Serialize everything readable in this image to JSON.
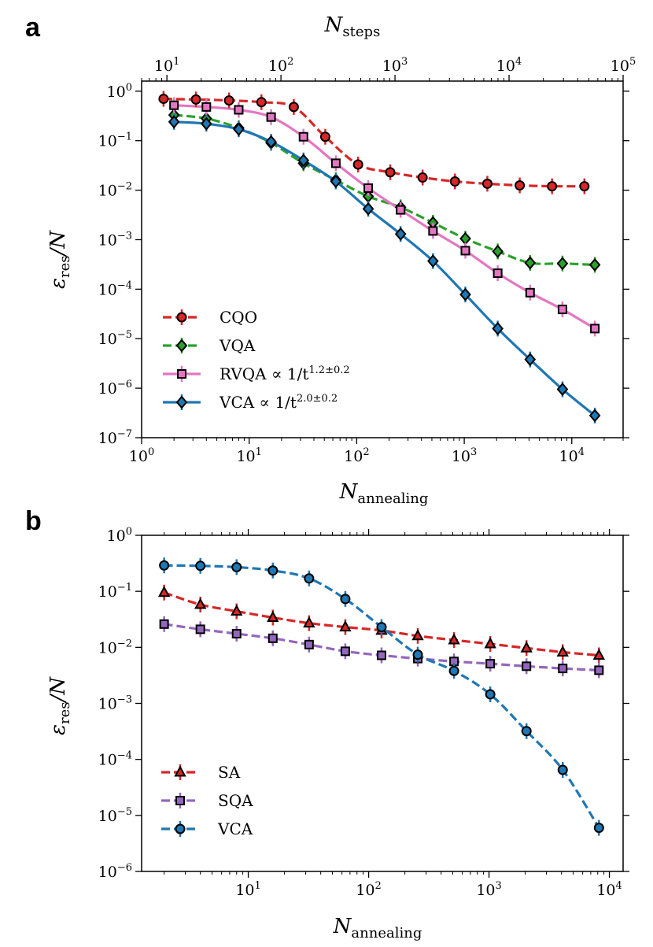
{
  "chart_data": [
    {
      "panel": "a",
      "type": "line",
      "xscale": "log",
      "yscale": "log",
      "xlim": [
        1,
        30000
      ],
      "ylim": [
        1e-07,
        1.6
      ],
      "xlabel": "N_annealing",
      "ylabel": "ε_res/N",
      "top_axis": {
        "label": "N_steps",
        "xlim": [
          6,
          100000
        ],
        "ticks": [
          10,
          100,
          1000,
          10000,
          100000
        ]
      },
      "xticks": [
        1,
        10,
        100,
        1000,
        10000
      ],
      "yticks": [
        1e-07,
        1e-06,
        1e-05,
        0.0001,
        0.001,
        0.01,
        0.1,
        1
      ],
      "legend_position": "lower-left",
      "series": [
        {
          "name": "CQO",
          "label": "CQO",
          "color": "#d62728",
          "marker": "circle",
          "linestyle": "dashed",
          "x": [
            1.6,
            3.2,
            6.5,
            13,
            26,
            51,
            103,
            205,
            410,
            820,
            1640,
            3280,
            6550,
            13100
          ],
          "y": [
            0.7,
            0.68,
            0.65,
            0.6,
            0.48,
            0.12,
            0.033,
            0.023,
            0.018,
            0.015,
            0.0135,
            0.0125,
            0.012,
            0.012
          ]
        },
        {
          "name": "VQA",
          "label": "VQA",
          "color": "#2ca02c",
          "marker": "diamond",
          "linestyle": "dashed",
          "x": [
            2,
            4,
            8,
            16,
            32,
            64,
            128,
            256,
            512,
            1024,
            2048,
            4096,
            8192,
            16384
          ],
          "y": [
            0.33,
            0.28,
            0.18,
            0.09,
            0.035,
            0.016,
            0.0075,
            0.0045,
            0.0022,
            0.00105,
            0.00058,
            0.00034,
            0.00033,
            0.00031
          ]
        },
        {
          "name": "RVQA",
          "label": "RVQA ∝ 1/t^1.2±0.2",
          "label_base": "RVQA ∝ 1/t",
          "label_exp": "1.2±0.2",
          "color": "#e377c2",
          "marker": "square",
          "linestyle": "solid",
          "x": [
            2,
            4,
            8,
            16,
            32,
            64,
            128,
            256,
            512,
            1024,
            2048,
            4096,
            8192,
            16384
          ],
          "y": [
            0.52,
            0.48,
            0.42,
            0.3,
            0.12,
            0.035,
            0.011,
            0.004,
            0.0015,
            0.0006,
            0.00021,
            8.5e-05,
            3.9e-05,
            1.6e-05
          ]
        },
        {
          "name": "VCA",
          "label": "VCA ∝ 1/t^2.0±0.2",
          "label_base": "VCA ∝ 1/t",
          "label_exp": "2.0±0.2",
          "color": "#1f77b4",
          "marker": "diamond",
          "linestyle": "solid",
          "x": [
            2,
            4,
            8,
            16,
            32,
            64,
            128,
            256,
            512,
            1024,
            2048,
            4096,
            8192,
            16384
          ],
          "y": [
            0.24,
            0.22,
            0.17,
            0.095,
            0.04,
            0.015,
            0.0042,
            0.0013,
            0.00037,
            7.8e-05,
            1.6e-05,
            3.8e-06,
            9.5e-07,
            2.8e-07
          ]
        }
      ]
    },
    {
      "panel": "b",
      "type": "line",
      "xscale": "log",
      "yscale": "log",
      "xlim": [
        1.3,
        13000
      ],
      "ylim": [
        1e-06,
        1
      ],
      "xlabel": "N_annealing",
      "ylabel": "ε_res/N",
      "xticks": [
        10,
        100,
        1000,
        10000
      ],
      "yticks": [
        1e-06,
        1e-05,
        0.0001,
        0.001,
        0.01,
        0.1,
        1
      ],
      "legend_position": "lower-left",
      "series": [
        {
          "name": "SA",
          "label": "SA",
          "color": "#d62728",
          "marker": "triangle",
          "linestyle": "dashed",
          "x": [
            2,
            4,
            8,
            16,
            32,
            64,
            128,
            256,
            512,
            1024,
            2048,
            4096,
            8192
          ],
          "y": [
            0.095,
            0.058,
            0.044,
            0.034,
            0.027,
            0.023,
            0.02,
            0.016,
            0.0135,
            0.0115,
            0.0097,
            0.0082,
            0.0072
          ]
        },
        {
          "name": "SQA",
          "label": "SQA",
          "color": "#9467bd",
          "marker": "square",
          "linestyle": "dashed",
          "x": [
            2,
            4,
            8,
            16,
            32,
            64,
            128,
            256,
            512,
            1024,
            2048,
            4096,
            8192
          ],
          "y": [
            0.026,
            0.021,
            0.0175,
            0.0145,
            0.0112,
            0.0085,
            0.0072,
            0.0063,
            0.0056,
            0.0051,
            0.0046,
            0.0042,
            0.0039
          ]
        },
        {
          "name": "VCA",
          "label": "VCA",
          "color": "#1f77b4",
          "marker": "circle",
          "linestyle": "dashed",
          "x": [
            2,
            4,
            8,
            16,
            32,
            64,
            128,
            256,
            512,
            1024,
            2048,
            4096,
            8192
          ],
          "y": [
            0.29,
            0.285,
            0.27,
            0.235,
            0.17,
            0.073,
            0.023,
            0.0074,
            0.0038,
            0.00145,
            0.00032,
            6.5e-05,
            6e-06
          ]
        }
      ]
    }
  ],
  "labels": {
    "panel_a": "a",
    "panel_b": "b",
    "N": "N",
    "sub_steps": "steps",
    "sub_annealing": "annealing",
    "eps": "ε",
    "sub_res": "res",
    "over_N": "/N"
  }
}
